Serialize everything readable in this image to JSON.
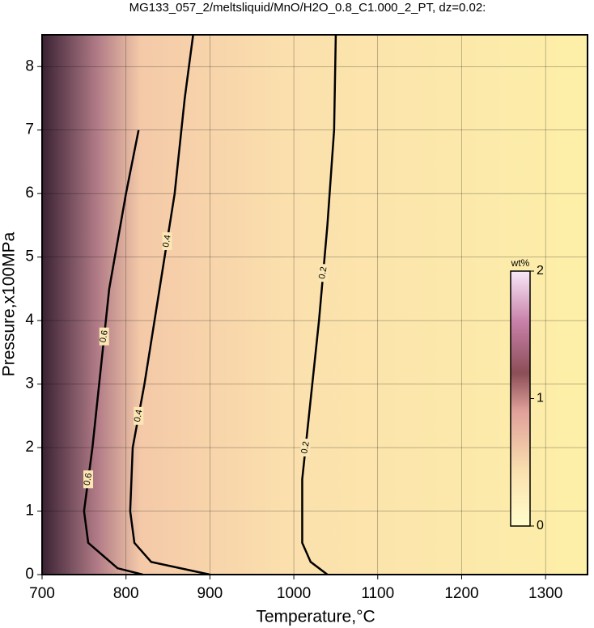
{
  "chart_data": {
    "type": "contour",
    "title": "MG133_057_2/meltsliquid/MnO/H2O_0.8_C1.000_2_PT, dz=0.02:",
    "x_label": "Temperature,°C",
    "y_label": "Pressure,x100MPa",
    "xlim": [
      700,
      1350
    ],
    "ylim": [
      0,
      8.5
    ],
    "xticks": [
      700,
      800,
      900,
      1000,
      1100,
      1200,
      1300
    ],
    "yticks": [
      0,
      1,
      2,
      3,
      4,
      5,
      6,
      7,
      8
    ],
    "grid": true,
    "contours": [
      {
        "level": 0.2,
        "x": [
          1050,
          1048,
          1040,
          1030,
          1018,
          1010,
          1010,
          1020,
          1040
        ],
        "y": [
          8.5,
          7,
          5.5,
          4,
          2.5,
          1.5,
          0.5,
          0.2,
          0
        ]
      },
      {
        "level": 0.4,
        "x": [
          880,
          870,
          858,
          840,
          822,
          808,
          805,
          810,
          830,
          900
        ],
        "y": [
          8.5,
          7.5,
          6,
          4.5,
          3,
          2,
          1,
          0.5,
          0.2,
          0
        ]
      },
      {
        "level": 0.6,
        "x": [
          815,
          800,
          780,
          768,
          760,
          750,
          755,
          790,
          820
        ],
        "y": [
          7,
          6,
          4.5,
          3,
          2,
          1,
          0.5,
          0.1,
          0
        ]
      }
    ],
    "colorbar": {
      "label": "wt%",
      "lim": [
        0,
        2
      ],
      "ticks": [
        0,
        1,
        2
      ]
    }
  }
}
